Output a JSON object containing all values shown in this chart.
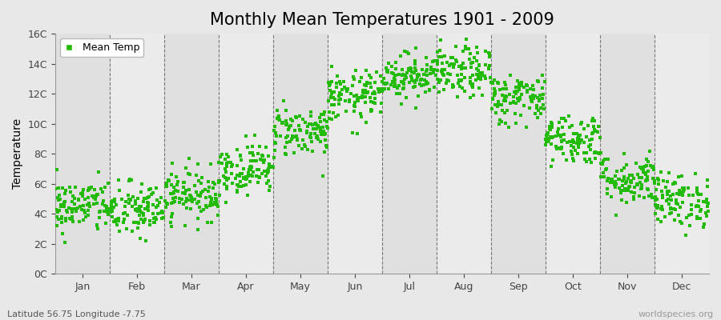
{
  "title": "Monthly Mean Temperatures 1901 - 2009",
  "ylabel": "Temperature",
  "xlabel_bottom_left": "Latitude 56.75 Longitude -7.75",
  "xlabel_bottom_right": "worldspecies.org",
  "months": [
    "Jan",
    "Feb",
    "Mar",
    "Apr",
    "May",
    "Jun",
    "Jul",
    "Aug",
    "Sep",
    "Oct",
    "Nov",
    "Dec"
  ],
  "monthly_means": [
    4.5,
    4.2,
    5.3,
    7.0,
    9.5,
    11.8,
    13.2,
    13.4,
    11.7,
    9.0,
    6.3,
    4.9
  ],
  "monthly_stds": [
    0.9,
    0.95,
    0.85,
    0.85,
    0.85,
    0.85,
    0.75,
    0.85,
    0.85,
    0.85,
    0.85,
    0.9
  ],
  "n_years": 109,
  "dot_color": "#22bb00",
  "dot_size": 7,
  "ylim": [
    0,
    16
  ],
  "yticks": [
    0,
    2,
    4,
    6,
    8,
    10,
    12,
    14,
    16
  ],
  "ytick_labels": [
    "0C",
    "2C",
    "4C",
    "6C",
    "8C",
    "10C",
    "12C",
    "14C",
    "16C"
  ],
  "fig_bg_color": "#e8e8e8",
  "band_colors": [
    "#e0e0e0",
    "#ebebeb"
  ],
  "legend_label": "Mean Temp",
  "title_fontsize": 15,
  "label_fontsize": 10,
  "tick_fontsize": 9,
  "dashed_line_color": "#777777",
  "spine_color": "#999999"
}
